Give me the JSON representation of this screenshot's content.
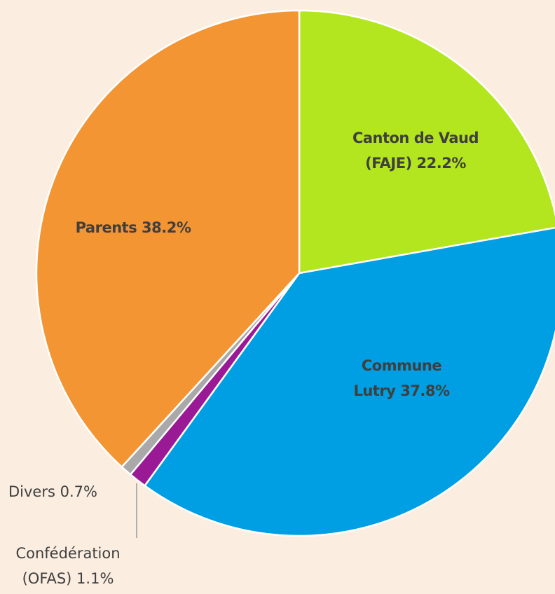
{
  "chart_data": {
    "type": "pie",
    "categories": [
      "Canton de Vaud (FAJE)",
      "Commune Lutry",
      "Confédération (OFAS)",
      "Divers",
      "Parents"
    ],
    "values": [
      22.2,
      37.8,
      1.1,
      0.7,
      38.2
    ],
    "value_labels": [
      "22.2%",
      "37.8%",
      "1.1%",
      "0.7%",
      "38.2%"
    ],
    "colors": [
      "#b3e61e",
      "#009ee2",
      "#9a1a96",
      "#a9a9a9",
      "#f39533"
    ]
  }
}
